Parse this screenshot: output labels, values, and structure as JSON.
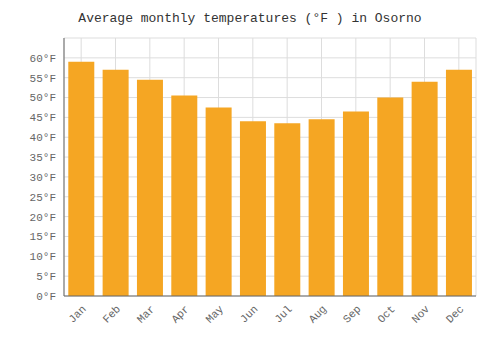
{
  "chart_data": {
    "type": "bar",
    "title": "Average monthly temperatures (°F ) in Osorno",
    "categories": [
      "Jan",
      "Feb",
      "Mar",
      "Apr",
      "May",
      "Jun",
      "Jul",
      "Aug",
      "Sep",
      "Oct",
      "Nov",
      "Dec"
    ],
    "values": [
      59,
      57,
      54.5,
      50.5,
      47.5,
      44,
      43.5,
      44.5,
      46.5,
      50,
      54,
      57
    ],
    "color": "#F5A623",
    "ylim": [
      0,
      65
    ],
    "yticks": [
      {
        "value": 0,
        "label": "0°F"
      },
      {
        "value": 5,
        "label": "5°F"
      },
      {
        "value": 10,
        "label": "10°F"
      },
      {
        "value": 15,
        "label": "15°F"
      },
      {
        "value": 20,
        "label": "20°F"
      },
      {
        "value": 25,
        "label": "25°F"
      },
      {
        "value": 30,
        "label": "30°F"
      },
      {
        "value": 35,
        "label": "35°F"
      },
      {
        "value": 40,
        "label": "40°F"
      },
      {
        "value": 45,
        "label": "45°F"
      },
      {
        "value": 50,
        "label": "50°F"
      },
      {
        "value": 55,
        "label": "55°F"
      },
      {
        "value": 60,
        "label": "60°F"
      }
    ],
    "grid": true
  }
}
